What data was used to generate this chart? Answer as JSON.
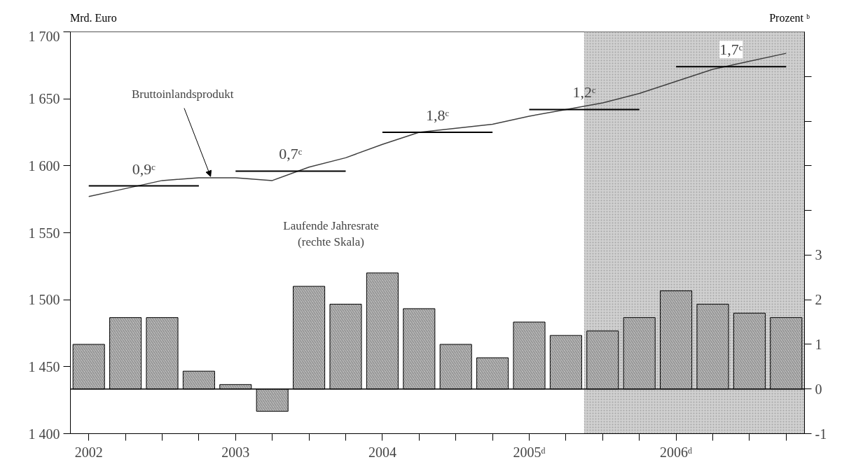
{
  "chart_data": {
    "type": "bar",
    "ylabel": "Mrd. Euro",
    "y2label": "Prozent ᵇ",
    "x": [
      2002,
      2002.25,
      2002.5,
      2002.75,
      2003,
      2003.25,
      2003.5,
      2003.75,
      2004,
      2004.25,
      2004.5,
      2004.75,
      2005,
      2005.25,
      2005.5,
      2005.75,
      2006,
      2006.25,
      2006.5,
      2006.75
    ],
    "series": [
      {
        "axis": "y2",
        "color": "#c8c8c8",
        "values": [
          1.0,
          1.6,
          1.6,
          0.4,
          0.1,
          -0.5,
          2.3,
          1.9,
          2.6,
          1.8,
          1.0,
          0.7,
          1.5,
          1.2,
          1.3,
          1.6,
          2.2,
          1.9,
          1.7,
          1.6
        ]
      },
      {
        "type": "line",
        "color": "#404040",
        "values": [
          1577,
          1583,
          1589,
          1591,
          1591,
          1589,
          1599,
          1606,
          1616,
          1625,
          1628,
          1631,
          1637,
          1642,
          1647,
          1654,
          1663,
          1672,
          1678,
          1684
        ]
      },
      {
        "type": "line",
        "color": "#000000",
        "x": [
          2002,
          2002.75
        ],
        "values": [
          1585,
          1585
        ]
      },
      {
        "type": "line",
        "color": "#000000",
        "x": [
          2003,
          2003.75
        ],
        "values": [
          1596,
          1596
        ]
      },
      {
        "type": "line",
        "color": "#000000",
        "x": [
          2004,
          2004.75
        ],
        "values": [
          1625,
          1625
        ]
      },
      {
        "type": "line",
        "color": "#000000",
        "x": [
          2005,
          2005.75
        ],
        "values": [
          1642,
          1642
        ]
      },
      {
        "type": "line",
        "color": "#000000",
        "x": [
          2006,
          2006.75
        ],
        "values": [
          1674,
          1674
        ]
      }
    ],
    "xlim": [
      2001.875,
      2006.875
    ],
    "xticks": [
      {
        "value": 2002,
        "label": "2002"
      },
      {
        "value": 2002.25,
        "label": null
      },
      {
        "value": 2002.5,
        "label": null
      },
      {
        "value": 2002.75,
        "label": null
      },
      {
        "value": 2003,
        "label": "2003"
      },
      {
        "value": 2003.25,
        "label": null
      },
      {
        "value": 2003.5,
        "label": null
      },
      {
        "value": 2003.75,
        "label": null
      },
      {
        "value": 2004,
        "label": "2004"
      },
      {
        "value": 2004.25,
        "label": null
      },
      {
        "value": 2004.5,
        "label": null
      },
      {
        "value": 2004.75,
        "label": null
      },
      {
        "value": 2005,
        "label": "2005ᵈ"
      },
      {
        "value": 2005.25,
        "label": null
      },
      {
        "value": 2005.5,
        "label": null
      },
      {
        "value": 2005.75,
        "label": null
      },
      {
        "value": 2006,
        "label": "2006ᵈ"
      },
      {
        "value": 2006.25,
        "label": null
      },
      {
        "value": 2006.5,
        "label": null
      },
      {
        "value": 2006.75,
        "label": null
      }
    ],
    "ylim": [
      1400,
      1700
    ],
    "yticks": [
      {
        "value": 1400,
        "label": "1 400"
      },
      {
        "value": 1450,
        "label": "1 450"
      },
      {
        "value": 1500,
        "label": "1 500"
      },
      {
        "value": 1550,
        "label": "1 550"
      },
      {
        "value": 1600,
        "label": "1 600"
      },
      {
        "value": 1650,
        "label": "1 650"
      },
      {
        "value": 1700,
        "label": "1 700"
      }
    ],
    "y2lim": [
      -1,
      8
    ],
    "y2ticks": [
      -1,
      0,
      1,
      2,
      3,
      {
        "value": 4,
        "label": null
      },
      {
        "value": 5,
        "label": null
      },
      {
        "value": 6,
        "label": null
      },
      {
        "value": 7,
        "label": null
      }
    ],
    "bands": [
      {
        "axis": "x",
        "from": 2005.375,
        "to": 2006.875,
        "color": "#d0d0d0"
      }
    ],
    "ref_lines": [
      {
        "axis": "y2",
        "value": 0,
        "color": "#000000"
      }
    ],
    "annotations": [
      {
        "text": "Bruttoinlandsprodukt",
        "x": 2002.83,
        "y": 1591
      },
      "Laufende Jahresrate\n(rechte Skala)",
      {
        "text": "0,9ᶜ",
        "x": 2002.375,
        "y": 1585
      },
      {
        "text": "0,7ᶜ",
        "x": 2003.375,
        "y": 1596
      },
      {
        "text": "1,8ᶜ",
        "x": 2004.375,
        "y": 1625
      },
      {
        "text": "1,2ᶜ",
        "x": 2005.375,
        "y": 1642
      },
      {
        "text": "1,7ᶜ",
        "x": 2006.375,
        "y": 1674
      }
    ],
    "grid": false
  }
}
